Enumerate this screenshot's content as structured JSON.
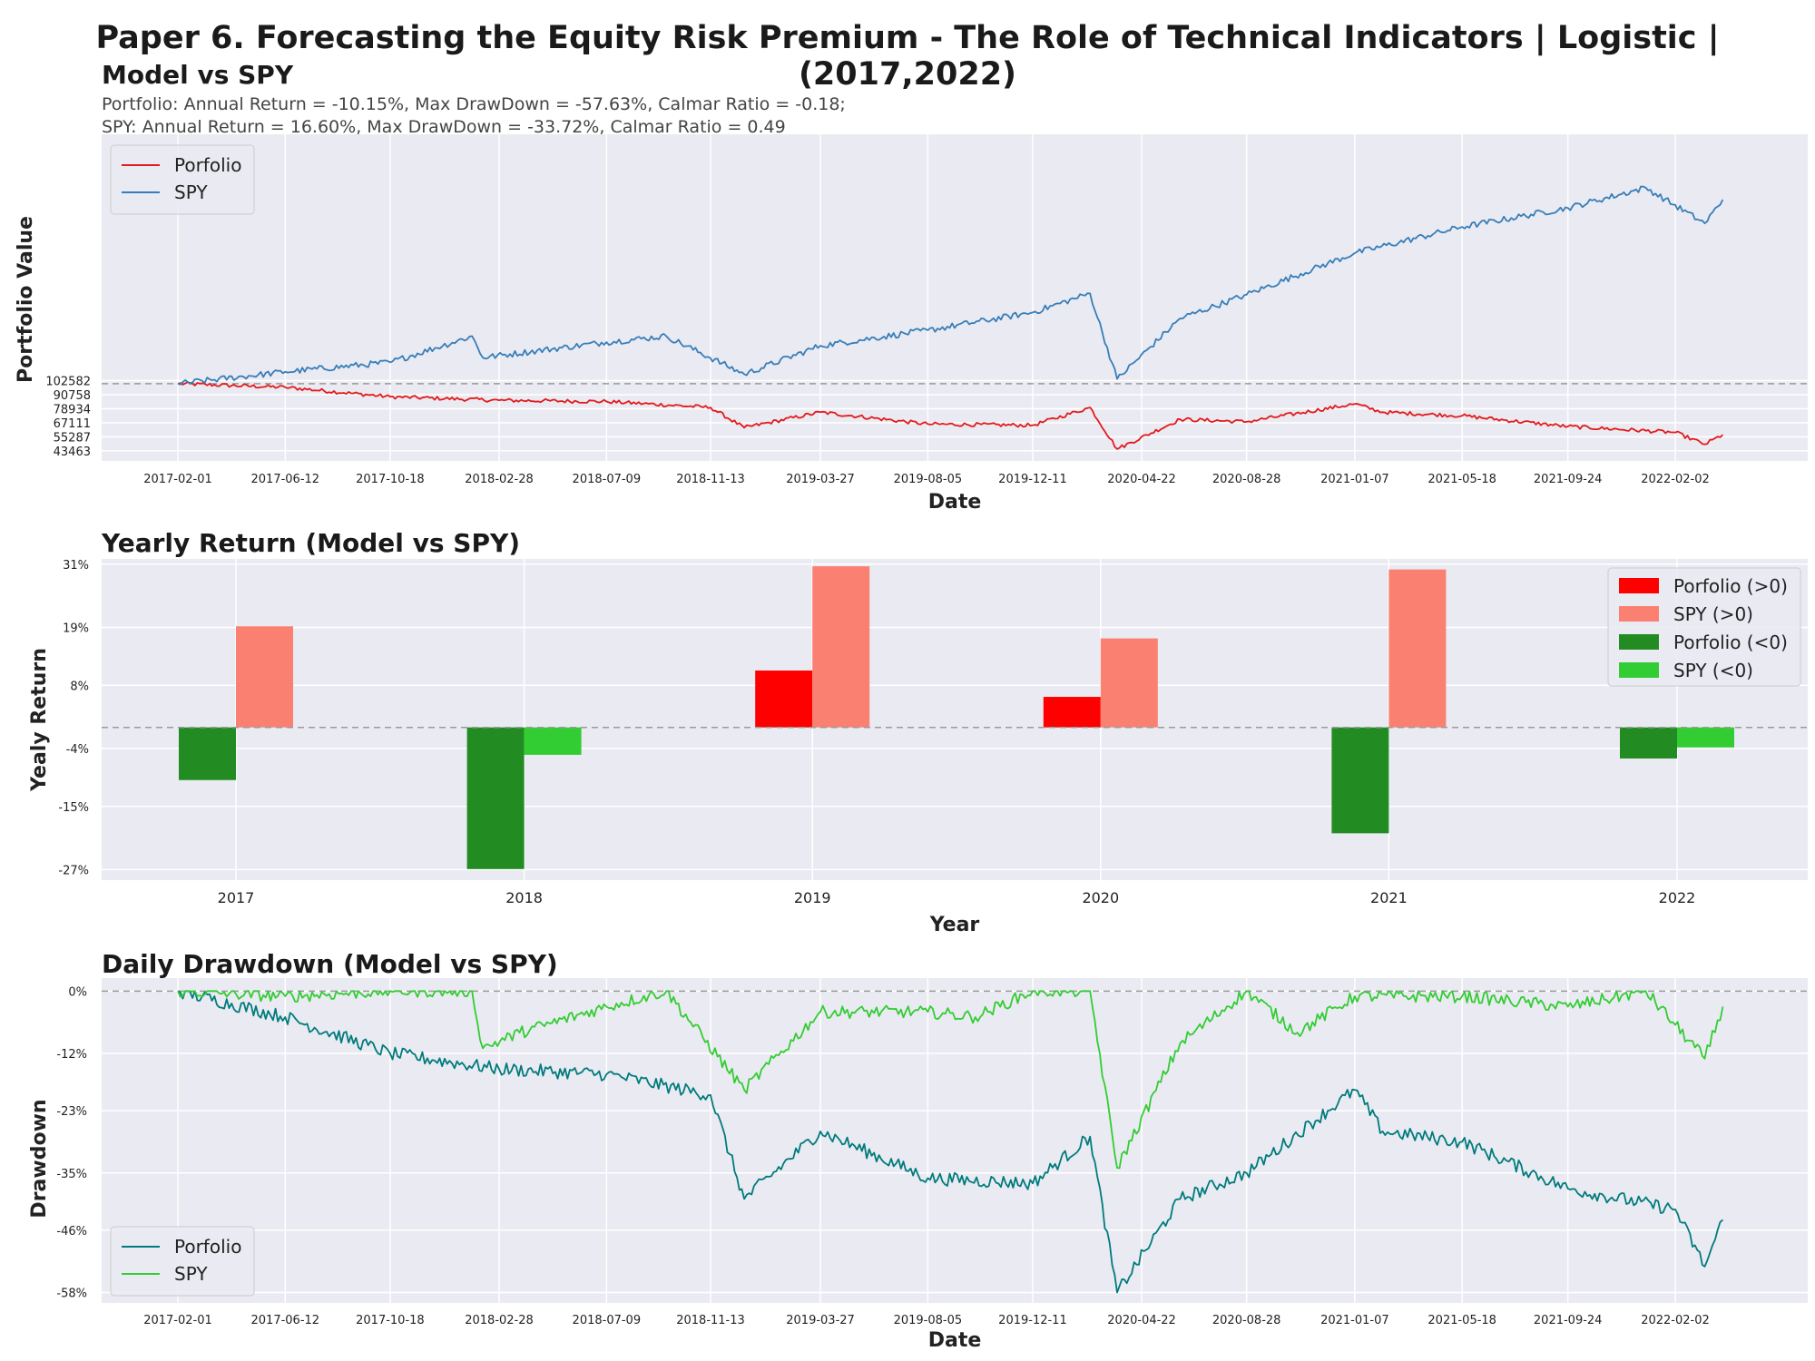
{
  "main_title": "Paper 6. Forecasting the Equity Risk Premium - The Role of Technical Indicators | Logistic | (2017,2022)",
  "colors": {
    "portfolio_line": "#e31a1c",
    "spy_line": "#377eb8",
    "pos_portfolio": "#ff0000",
    "pos_spy": "#fa8072",
    "neg_portfolio": "#228b22",
    "neg_spy": "#32cd32",
    "dd_portfolio": "#007b7b",
    "dd_spy": "#32cd32",
    "plot_bg": "#eaeaf2"
  },
  "chart_data": [
    {
      "type": "line",
      "title": "Model vs SPY",
      "subtitle_lines": [
        "Portfolio: Annual Return = -10.15%, Max DrawDown = -57.63%, Calmar Ratio = -0.18;",
        "SPY: Annual Return = 16.60%, Max DrawDown = -33.72%, Calmar Ratio = 0.49"
      ],
      "xlabel": "Date",
      "ylabel": "Portfolio Value",
      "x_ticks": [
        "2017-02-01",
        "2017-06-12",
        "2017-10-18",
        "2018-02-28",
        "2018-07-09",
        "2018-11-13",
        "2019-03-27",
        "2019-08-05",
        "2019-12-11",
        "2020-04-22",
        "2020-08-28",
        "2021-01-07",
        "2021-05-18",
        "2021-09-24",
        "2022-02-02"
      ],
      "y_ticks": [
        43463,
        55287,
        67111,
        78934,
        90758,
        102582
      ],
      "ylim": [
        35000,
        310000
      ],
      "baseline": 100000,
      "legend": [
        "Porfolio",
        "SPY"
      ],
      "legend_position": "upper-left",
      "series": [
        {
          "name": "Porfolio",
          "x": [
            "2017-02-01",
            "2017-06-12",
            "2017-10-18",
            "2018-02-28",
            "2018-07-09",
            "2018-11-13",
            "2018-12-24",
            "2019-03-27",
            "2019-08-05",
            "2019-12-11",
            "2020-02-19",
            "2020-03-23",
            "2020-06-08",
            "2020-08-28",
            "2021-01-07",
            "2021-02-10",
            "2021-05-18",
            "2021-09-24",
            "2022-02-02",
            "2022-03-10",
            "2022-04-01"
          ],
          "values": [
            100000,
            97000,
            89000,
            86000,
            85000,
            80000,
            63000,
            76000,
            66000,
            65000,
            80000,
            45000,
            70000,
            68000,
            83000,
            76000,
            73000,
            64000,
            59000,
            49000,
            57000
          ]
        },
        {
          "name": "SPY",
          "x": [
            "2017-02-01",
            "2017-06-12",
            "2017-10-18",
            "2018-01-26",
            "2018-02-08",
            "2018-07-09",
            "2018-09-20",
            "2018-12-24",
            "2019-03-27",
            "2019-08-05",
            "2019-12-11",
            "2020-02-19",
            "2020-03-23",
            "2020-06-08",
            "2020-08-28",
            "2021-01-07",
            "2021-05-18",
            "2021-09-24",
            "2021-12-28",
            "2022-03-10",
            "2022-04-01"
          ],
          "values": [
            100000,
            110000,
            118000,
            140000,
            122000,
            135000,
            140000,
            108000,
            132000,
            145000,
            160000,
            176000,
            104000,
            155000,
            175000,
            210000,
            232000,
            248000,
            265000,
            235000,
            255000
          ]
        }
      ]
    },
    {
      "type": "bar",
      "title": "Yearly Return (Model vs SPY)",
      "xlabel": "Year",
      "ylabel": "Yealy Return",
      "categories": [
        "2017",
        "2018",
        "2019",
        "2020",
        "2021",
        "2022"
      ],
      "y_ticks": [
        "31%",
        "19%",
        "8%",
        "-4%",
        "-15%",
        "-27%"
      ],
      "y_tick_values": [
        31,
        19,
        8,
        -4,
        -15,
        -27
      ],
      "ylim": [
        -29,
        32
      ],
      "legend": [
        "Porfolio (>0)",
        "SPY (>0)",
        "Porfolio (<0)",
        "SPY (<0)"
      ],
      "legend_position": "upper-right",
      "series": [
        {
          "name": "Porfolio",
          "values": [
            -10.0,
            -26.9,
            10.8,
            5.8,
            -20.1,
            -5.9
          ]
        },
        {
          "name": "SPY",
          "values": [
            19.2,
            -5.2,
            30.6,
            16.9,
            30.0,
            -3.8
          ]
        }
      ]
    },
    {
      "type": "line",
      "title": "Daily Drawdown (Model vs SPY)",
      "xlabel": "Date",
      "ylabel": "Drawdown",
      "x_ticks": [
        "2017-02-01",
        "2017-06-12",
        "2017-10-18",
        "2018-02-28",
        "2018-07-09",
        "2018-11-13",
        "2019-03-27",
        "2019-08-05",
        "2019-12-11",
        "2020-04-22",
        "2020-08-28",
        "2021-01-07",
        "2021-05-18",
        "2021-09-24",
        "2022-02-02"
      ],
      "y_ticks": [
        "0%",
        "-12%",
        "-23%",
        "-35%",
        "-46%",
        "-58%"
      ],
      "y_tick_values": [
        0,
        -12,
        -23,
        -35,
        -46,
        -58
      ],
      "ylim": [
        -60,
        2.5
      ],
      "legend": [
        "Porfolio",
        "SPY"
      ],
      "legend_position": "lower-left",
      "series": [
        {
          "name": "Porfolio",
          "x": [
            "2017-02-01",
            "2017-06-12",
            "2017-10-18",
            "2018-02-28",
            "2018-07-09",
            "2018-11-13",
            "2018-12-24",
            "2019-03-27",
            "2019-08-05",
            "2019-12-11",
            "2020-02-19",
            "2020-03-23",
            "2020-06-08",
            "2020-08-28",
            "2021-01-07",
            "2021-02-10",
            "2021-05-18",
            "2021-09-24",
            "2022-02-02",
            "2022-03-10",
            "2022-04-01"
          ],
          "values": [
            0,
            -5,
            -12,
            -15,
            -16,
            -20,
            -40,
            -27,
            -36,
            -37,
            -28,
            -58,
            -40,
            -35,
            -19,
            -27,
            -29,
            -38,
            -42,
            -53,
            -44
          ]
        },
        {
          "name": "SPY",
          "x": [
            "2017-02-01",
            "2017-06-12",
            "2017-10-18",
            "2018-01-26",
            "2018-02-08",
            "2018-03-25",
            "2018-07-09",
            "2018-09-20",
            "2018-12-24",
            "2019-03-27",
            "2019-08-05",
            "2019-10-02",
            "2019-12-11",
            "2020-02-19",
            "2020-03-23",
            "2020-06-08",
            "2020-08-28",
            "2020-10-29",
            "2021-01-07",
            "2021-05-18",
            "2021-09-24",
            "2021-12-28",
            "2022-03-10",
            "2022-04-01"
          ],
          "values": [
            0,
            -1,
            0,
            0,
            -11,
            -8,
            -3,
            0,
            -19,
            -4,
            -4,
            -5,
            0,
            0,
            -34,
            -10,
            0,
            -8,
            -1,
            -1,
            -3,
            0,
            -13,
            -3
          ]
        }
      ]
    }
  ]
}
